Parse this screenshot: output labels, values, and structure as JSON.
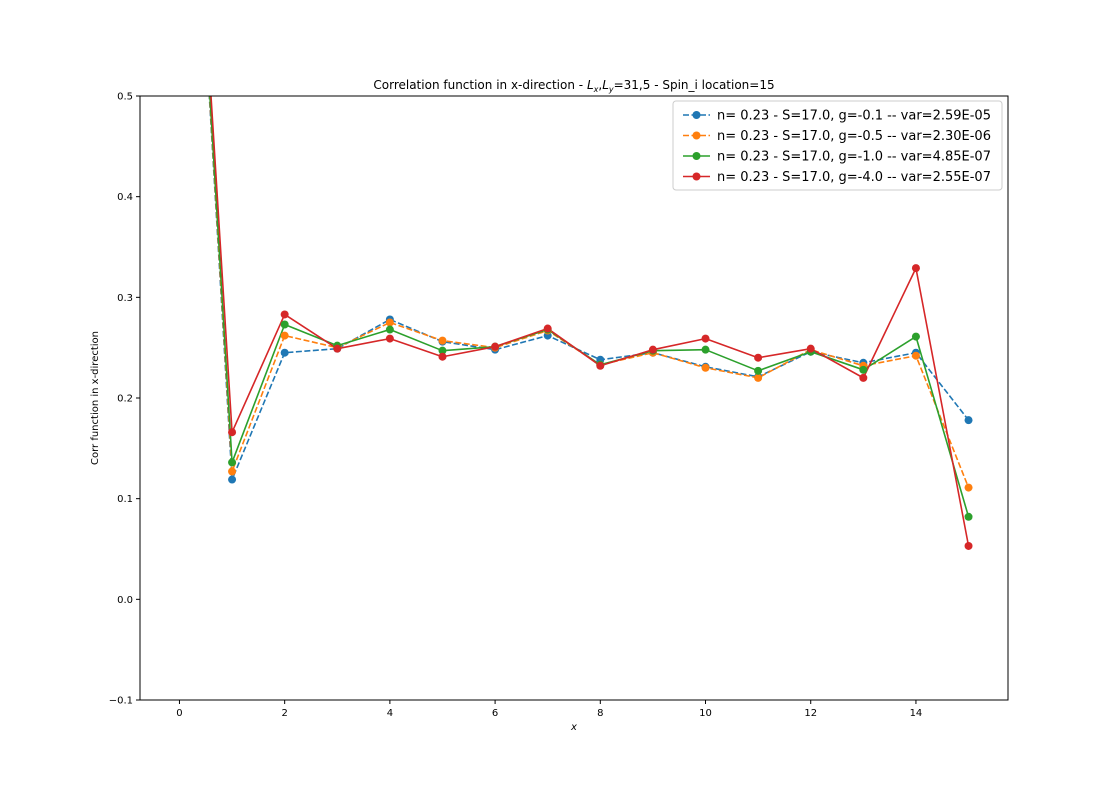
{
  "chart_data": {
    "type": "line",
    "title_prefix": "Correlation function in x-direction - ",
    "title_lx": "L",
    "title_lx_sub": "x",
    "title_ly": "L",
    "title_ly_sub": "y",
    "title_suffix": "=31,5 - Spin_i location=15",
    "xlabel": "x",
    "ylabel": "Corr function in x-direction",
    "xlim": [
      -0.75,
      15.75
    ],
    "ylim": [
      -0.1,
      0.5
    ],
    "xticks": [
      0,
      2,
      4,
      6,
      8,
      10,
      12,
      14
    ],
    "xtick_labels": [
      "0",
      "2",
      "4",
      "6",
      "8",
      "10",
      "12",
      "14"
    ],
    "yticks": [
      -0.1,
      0.0,
      0.1,
      0.2,
      0.3,
      0.4,
      0.5
    ],
    "ytick_labels": [
      "−0.1",
      "0.0",
      "0.1",
      "0.2",
      "0.3",
      "0.4",
      "0.5"
    ],
    "legend_position": "top-right",
    "grid": false,
    "x": [
      0,
      1,
      2,
      3,
      4,
      5,
      6,
      7,
      8,
      9,
      10,
      11,
      12,
      13,
      14,
      15
    ],
    "series": [
      {
        "name": "n= 0.23 - S=17.0, g=-0.1 -- var=2.59E-05",
        "color": "#1f77b4",
        "dashed": true,
        "values": [
          1.0,
          0.119,
          0.245,
          0.249,
          0.278,
          0.256,
          0.248,
          0.262,
          0.238,
          0.245,
          0.231,
          0.221,
          0.246,
          0.235,
          0.245,
          0.178
        ]
      },
      {
        "name": "n= 0.23 - S=17.0, g=-0.5 -- var=2.30E-06",
        "color": "#ff7f0e",
        "dashed": true,
        "values": [
          1.0,
          0.127,
          0.262,
          0.25,
          0.275,
          0.257,
          0.25,
          0.267,
          0.233,
          0.245,
          0.23,
          0.22,
          0.248,
          0.232,
          0.242,
          0.111
        ]
      },
      {
        "name": "n= 0.23 - S=17.0, g=-1.0 -- var=4.85E-07",
        "color": "#2ca02c",
        "dashed": false,
        "values": [
          1.0,
          0.136,
          0.273,
          0.252,
          0.268,
          0.247,
          0.251,
          0.268,
          0.233,
          0.247,
          0.248,
          0.227,
          0.246,
          0.228,
          0.261,
          0.082
        ]
      },
      {
        "name": "n= 0.23 - S=17.0, g=-4.0 -- var=2.55E-07",
        "color": "#d62728",
        "dashed": false,
        "values": [
          1.0,
          0.166,
          0.283,
          0.249,
          0.259,
          0.241,
          0.251,
          0.269,
          0.232,
          0.248,
          0.259,
          0.24,
          0.249,
          0.22,
          0.329,
          0.053
        ]
      }
    ]
  }
}
